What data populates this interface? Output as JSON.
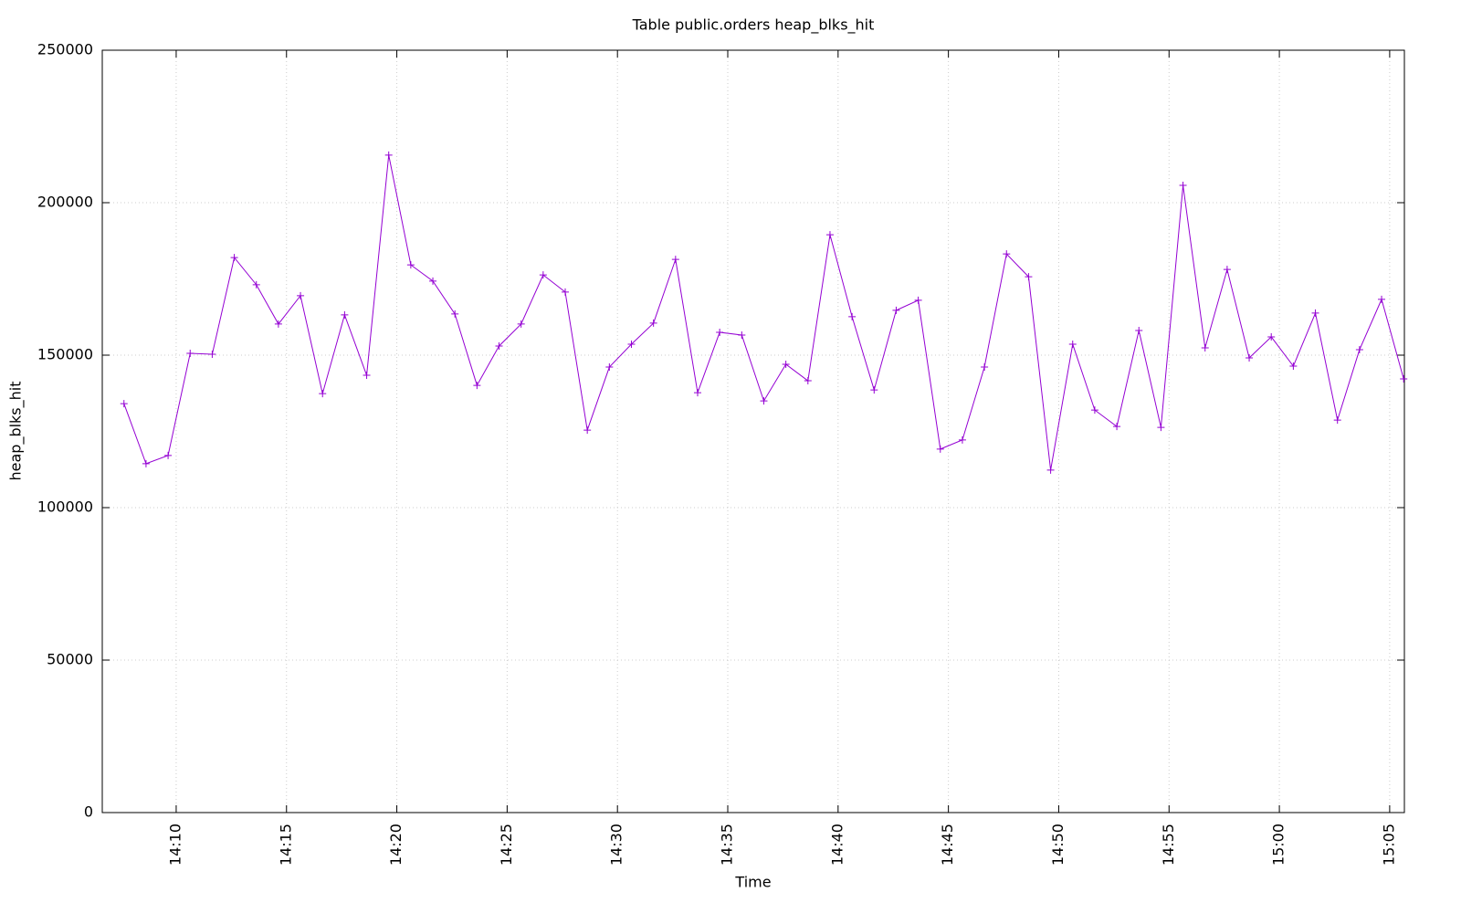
{
  "chart_data": {
    "type": "line",
    "title": "Table public.orders heap_blks_hit",
    "x_label": "Time",
    "y_label": "heap_blks_hit",
    "color": "#9400d3",
    "grid": true,
    "marker": "+",
    "x": [
      "14:07:38",
      "14:08:38",
      "14:09:38",
      "14:10:38",
      "14:11:38",
      "14:12:38",
      "14:13:38",
      "14:14:38",
      "14:15:38",
      "14:16:38",
      "14:17:38",
      "14:18:38",
      "14:19:38",
      "14:20:38",
      "14:21:38",
      "14:22:38",
      "14:23:38",
      "14:24:38",
      "14:25:38",
      "14:26:38",
      "14:27:38",
      "14:28:38",
      "14:29:38",
      "14:30:38",
      "14:31:38",
      "14:32:38",
      "14:33:38",
      "14:34:38",
      "14:35:38",
      "14:36:38",
      "14:37:38",
      "14:38:38",
      "14:39:38",
      "14:40:38",
      "14:41:38",
      "14:42:38",
      "14:43:38",
      "14:44:38",
      "14:45:38",
      "14:46:38",
      "14:47:38",
      "14:48:38",
      "14:49:38",
      "14:50:38",
      "14:51:38",
      "14:52:38",
      "14:53:38",
      "14:54:38",
      "14:55:38",
      "14:56:38",
      "14:57:38",
      "14:58:38",
      "14:59:38",
      "15:00:38",
      "15:01:38",
      "15:02:38",
      "15:03:38",
      "15:04:38",
      "15:05:38"
    ],
    "values": [
      134100,
      114400,
      117100,
      150600,
      150300,
      182000,
      173100,
      160200,
      169500,
      137400,
      163200,
      143400,
      215600,
      179600,
      174300,
      163500,
      140100,
      153000,
      160200,
      176300,
      170700,
      125400,
      146100,
      153600,
      160500,
      181400,
      137700,
      157500,
      156600,
      135000,
      147000,
      141600,
      189500,
      162600,
      138600,
      164700,
      168000,
      119200,
      122200,
      146100,
      183200,
      175700,
      112300,
      153600,
      132000,
      126600,
      158100,
      126300,
      205700,
      152400,
      178100,
      149100,
      156000,
      146400,
      163800,
      128700,
      151800,
      168300,
      142200
    ],
    "xlim": [
      "14:06:39",
      "15:05:40"
    ],
    "xticks": [
      "14:10",
      "14:15",
      "14:20",
      "14:25",
      "14:30",
      "14:35",
      "14:40",
      "14:45",
      "14:50",
      "14:55",
      "15:00",
      "15:05"
    ],
    "ylim": [
      0,
      250000
    ],
    "yticks": [
      0,
      50000,
      100000,
      150000,
      200000,
      250000
    ]
  }
}
